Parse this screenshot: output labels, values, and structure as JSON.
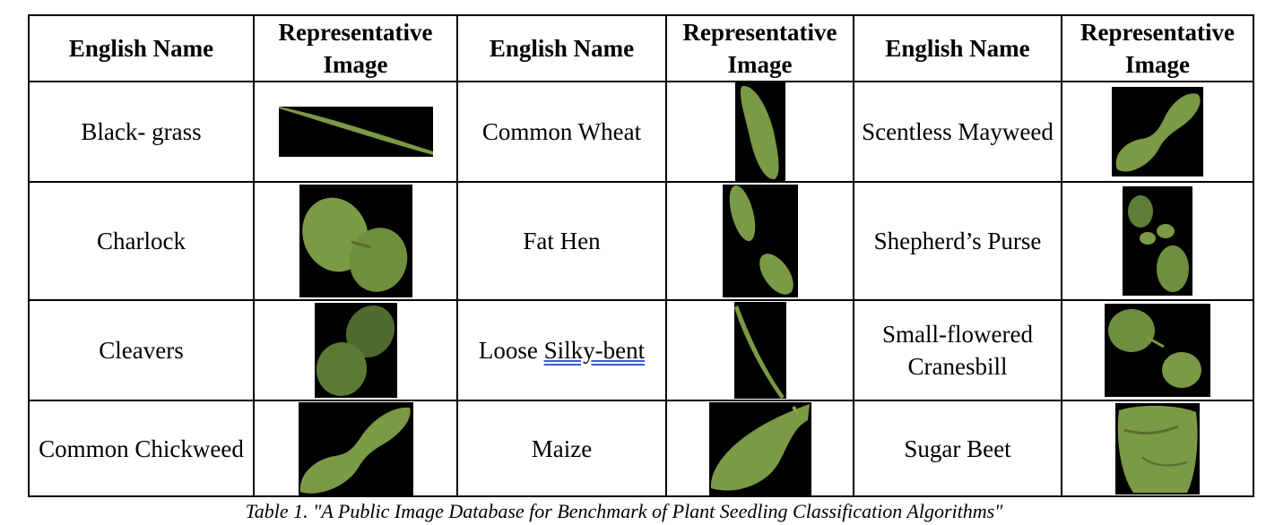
{
  "table": {
    "headers": [
      "English Name",
      "Representative Image",
      "English Name",
      "Representative Image",
      "English Name",
      "Representative Image"
    ],
    "rows": [
      [
        {
          "name": "Black- grass",
          "image": "black-grass-seedling-image"
        },
        {
          "name": "Common Wheat",
          "image": "common-wheat-seedling-image"
        },
        {
          "name": "Scentless Mayweed",
          "image": "scentless-mayweed-seedling-image"
        }
      ],
      [
        {
          "name": "Charlock",
          "image": "charlock-seedling-image"
        },
        {
          "name": "Fat Hen",
          "image": "fat-hen-seedling-image"
        },
        {
          "name": "Shepherd’s Purse",
          "image": "shepherds-purse-seedling-image"
        }
      ],
      [
        {
          "name": "Cleavers",
          "image": "cleavers-seedling-image"
        },
        {
          "name_prefix": "Loose ",
          "name_underlined": "Silky-bent",
          "image": "loose-silky-bent-seedling-image"
        },
        {
          "name": "Small-flowered Cranesbill",
          "image": "small-flowered-cranesbill-seedling-image"
        }
      ],
      [
        {
          "name": "Common Chickweed",
          "image": "common-chickweed-seedling-image"
        },
        {
          "name": "Maize",
          "image": "maize-seedling-image"
        },
        {
          "name": "Sugar Beet",
          "image": "sugar-beet-seedling-image"
        }
      ]
    ]
  },
  "colors": {
    "leaf": "#7a9a45",
    "leaf_dark": "#566e2f",
    "background": "#000000",
    "spell_underline": "#3a5bd9"
  },
  "caption": "Table 1. \"A Public Image Database for Benchmark of Plant Seedling Classification Algorithms\""
}
